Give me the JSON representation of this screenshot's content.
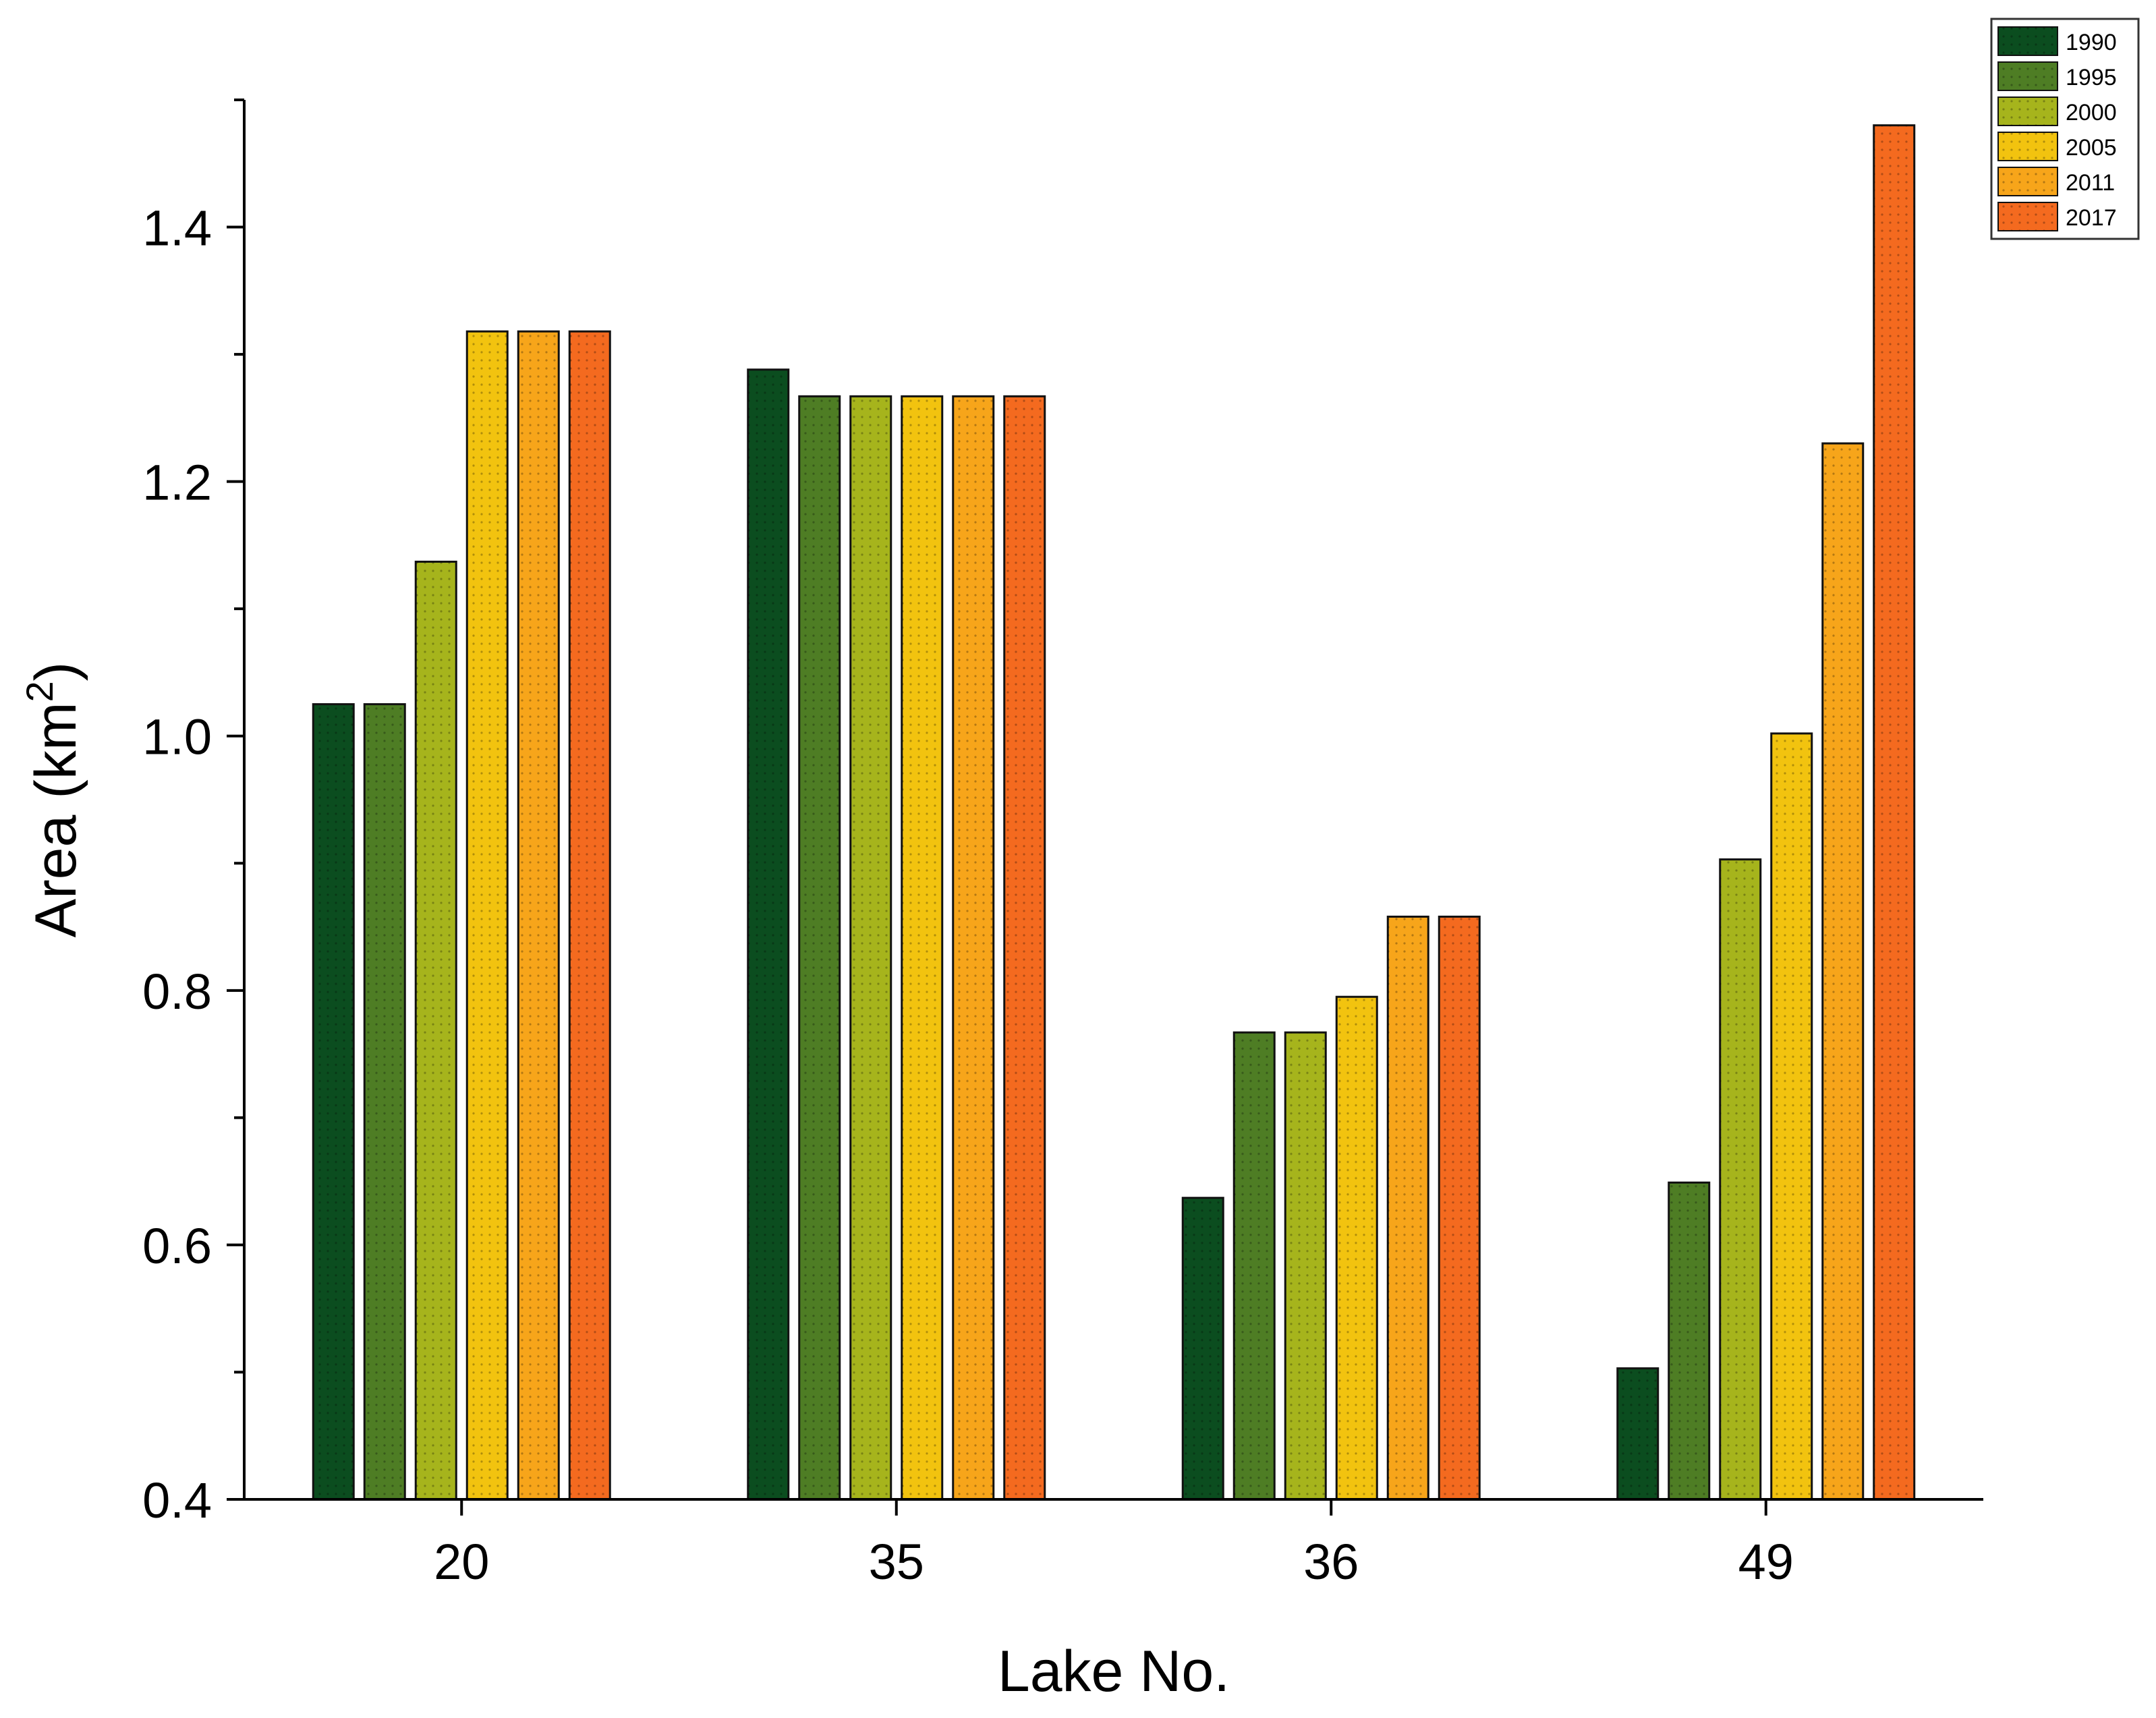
{
  "chart_data": {
    "type": "bar",
    "title": "",
    "xlabel": "Lake No.",
    "ylabel": "Area (km",
    "ylabel_sup": "2",
    "ylabel_close": ")",
    "ylim": [
      0.4,
      1.5
    ],
    "yticks": [
      "0.4",
      "0.6",
      "0.8",
      "1.0",
      "1.2",
      "1.4"
    ],
    "ytick_values": [
      0.4,
      0.6,
      0.8,
      1.0,
      1.2,
      1.4
    ],
    "categories": [
      "20",
      "35",
      "36",
      "49"
    ],
    "legend_position": "top-right",
    "grid": false,
    "series": [
      {
        "name": "1990",
        "color": "#0b4d1f",
        "values": [
          1.025,
          1.288,
          0.637,
          0.503
        ]
      },
      {
        "name": "1995",
        "color": "#4e7d24",
        "values": [
          1.025,
          1.267,
          0.767,
          0.649
        ]
      },
      {
        "name": "2000",
        "color": "#a6b41c",
        "values": [
          1.137,
          1.267,
          0.767,
          0.903
        ]
      },
      {
        "name": "2005",
        "color": "#f2c30f",
        "values": [
          1.318,
          1.267,
          0.795,
          1.002
        ]
      },
      {
        "name": "2011",
        "color": "#f7a51a",
        "values": [
          1.318,
          1.267,
          0.858,
          1.23
        ]
      },
      {
        "name": "2017",
        "color": "#f46a1f",
        "values": [
          1.318,
          1.267,
          0.858,
          1.48
        ]
      }
    ]
  }
}
